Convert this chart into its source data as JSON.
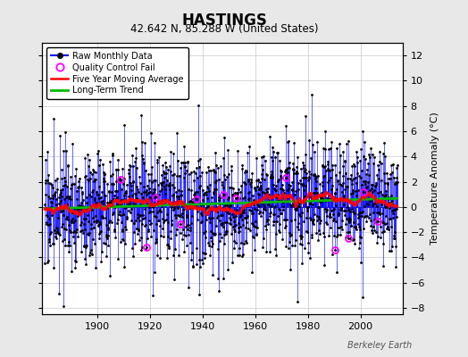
{
  "title": "HASTINGS",
  "subtitle": "42.642 N, 85.288 W (United States)",
  "ylabel": "Temperature Anomaly (°C)",
  "watermark": "Berkeley Earth",
  "year_start": 1880,
  "year_end": 2014,
  "ylim": [
    -8.5,
    13
  ],
  "yticks": [
    -8,
    -6,
    -4,
    -2,
    0,
    2,
    4,
    6,
    8,
    10,
    12
  ],
  "xticks": [
    1900,
    1920,
    1940,
    1960,
    1980,
    2000
  ],
  "raw_color": "#0000ff",
  "ma_color": "#ff0000",
  "trend_color": "#00bb00",
  "qc_color": "#ff00ff",
  "bg_color": "#e8e8e8",
  "plot_bg": "#ffffff",
  "grid_color": "#c8c8c8",
  "title_fontsize": 12,
  "subtitle_fontsize": 8.5,
  "label_fontsize": 8,
  "tick_fontsize": 8,
  "seed": 17
}
